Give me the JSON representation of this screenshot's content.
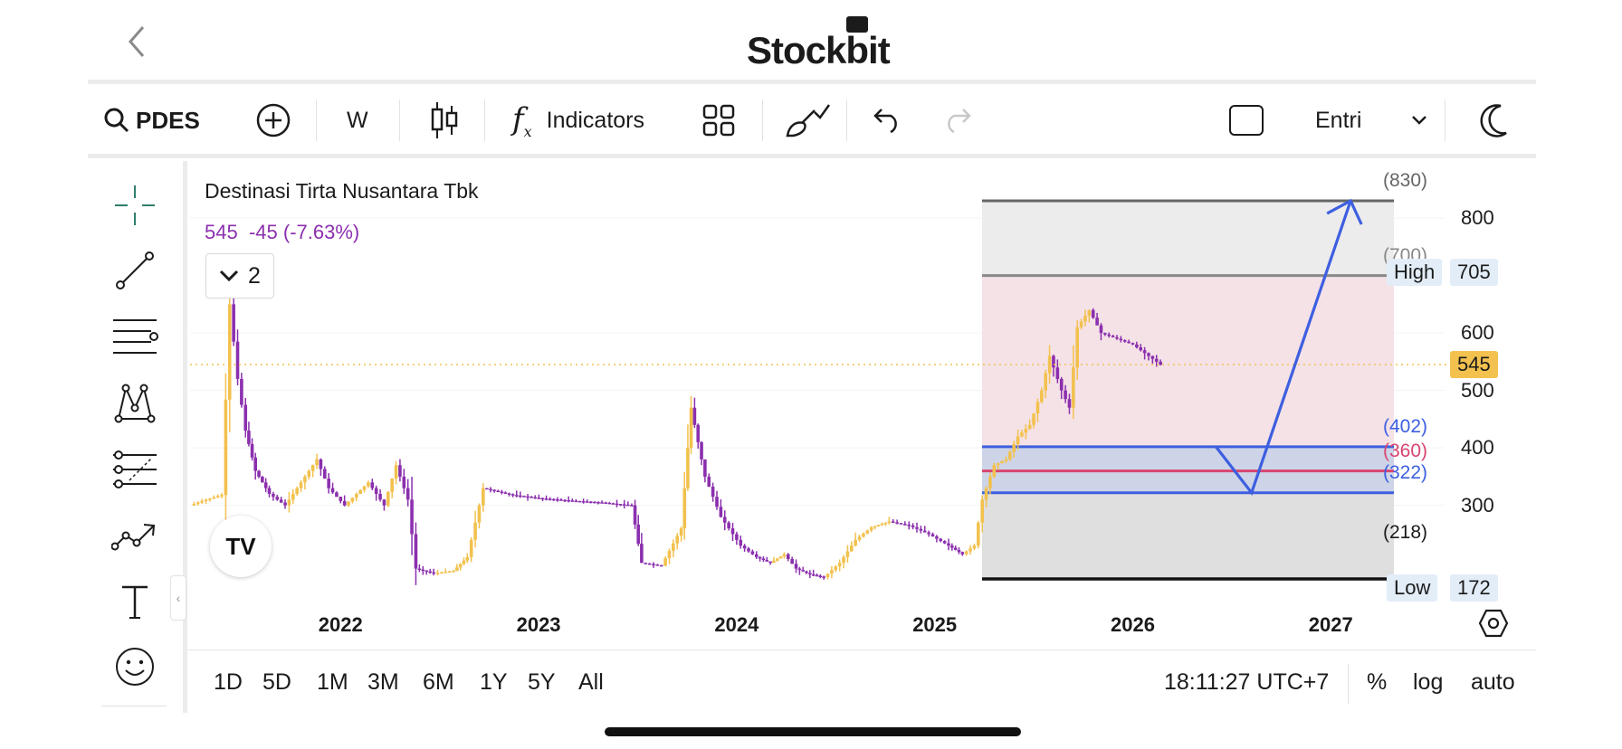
{
  "header": {
    "back_icon": "chevron-left-icon",
    "brand": "Stockbit"
  },
  "toolbar": {
    "symbol": "PDES",
    "interval": "W",
    "indicators_label": "Indicators",
    "order_label": "Entri"
  },
  "chart_header": {
    "name": "Destinasi Tirta Nusantara Tbk",
    "last_price": "545",
    "change": "-45 (-7.63%)",
    "collapsed_count": "2"
  },
  "bottom_bar": {
    "ranges": [
      "1D",
      "5D",
      "1M",
      "3M",
      "6M",
      "1Y",
      "5Y",
      "All"
    ],
    "clock": "18:11:27 UTC+7",
    "percent": "%",
    "log": "log",
    "auto": "auto"
  },
  "colors": {
    "bull": "#f2c14e",
    "bear": "#8b2fae",
    "blue_line": "#3d5fe0",
    "red_line": "#d8456f",
    "price_tag": "#f2c14e",
    "fib_pink": "#f3dde3",
    "fib_grey": "#e9e9e9"
  },
  "chart_data": {
    "type": "candlestick",
    "x_ticks": [
      "2022",
      "2023",
      "2024",
      "2025",
      "2026",
      "2027"
    ],
    "y_ticks": [
      300,
      400,
      500,
      600,
      800
    ],
    "y_range": [
      160,
      850
    ],
    "x_range": [
      2021.22,
      2027.55
    ],
    "current_price": 545,
    "high": {
      "label": "High",
      "value": 705
    },
    "low": {
      "label": "Low",
      "value": 172
    },
    "levels": [
      {
        "label": "(830)",
        "value": 830,
        "color": "#666666"
      },
      {
        "label": "(700)",
        "value": 700,
        "color": "#888888"
      },
      {
        "label": "(402)",
        "value": 402,
        "color": "#3d5fe0"
      },
      {
        "label": "(360)",
        "value": 360,
        "color": "#d8456f"
      },
      {
        "label": "(322)",
        "value": 322,
        "color": "#3d5fe0"
      },
      {
        "label": "(218)",
        "value": 218,
        "color": "#1b1b1b"
      }
    ],
    "projection_path": [
      [
        2026.4,
        402
      ],
      [
        2026.58,
        322
      ],
      [
        2027.08,
        830
      ]
    ],
    "series_close": [
      [
        2021.22,
        300
      ],
      [
        2021.3,
        310
      ],
      [
        2021.38,
        318
      ],
      [
        2021.42,
        650
      ],
      [
        2021.46,
        520
      ],
      [
        2021.5,
        430
      ],
      [
        2021.55,
        360
      ],
      [
        2021.62,
        320
      ],
      [
        2021.7,
        300
      ],
      [
        2021.78,
        340
      ],
      [
        2021.86,
        380
      ],
      [
        2021.92,
        330
      ],
      [
        2022.0,
        300
      ],
      [
        2022.06,
        320
      ],
      [
        2022.12,
        340
      ],
      [
        2022.2,
        300
      ],
      [
        2022.26,
        370
      ],
      [
        2022.32,
        310
      ],
      [
        2022.36,
        190
      ],
      [
        2022.45,
        182
      ],
      [
        2022.55,
        186
      ],
      [
        2022.62,
        210
      ],
      [
        2022.7,
        330
      ],
      [
        2022.85,
        318
      ],
      [
        2023.0,
        312
      ],
      [
        2023.15,
        308
      ],
      [
        2023.3,
        305
      ],
      [
        2023.45,
        300
      ],
      [
        2023.5,
        200
      ],
      [
        2023.6,
        195
      ],
      [
        2023.7,
        260
      ],
      [
        2023.75,
        470
      ],
      [
        2023.82,
        350
      ],
      [
        2023.9,
        280
      ],
      [
        2024.0,
        230
      ],
      [
        2024.08,
        210
      ],
      [
        2024.15,
        200
      ],
      [
        2024.22,
        215
      ],
      [
        2024.28,
        190
      ],
      [
        2024.35,
        180
      ],
      [
        2024.42,
        175
      ],
      [
        2024.5,
        200
      ],
      [
        2024.58,
        240
      ],
      [
        2024.66,
        262
      ],
      [
        2024.75,
        272
      ],
      [
        2024.85,
        265
      ],
      [
        2024.95,
        250
      ],
      [
        2025.05,
        230
      ],
      [
        2025.12,
        215
      ],
      [
        2025.18,
        230
      ],
      [
        2025.22,
        310
      ],
      [
        2025.28,
        370
      ],
      [
        2025.34,
        380
      ],
      [
        2025.4,
        420
      ],
      [
        2025.46,
        440
      ],
      [
        2025.52,
        500
      ],
      [
        2025.56,
        560
      ],
      [
        2025.62,
        500
      ],
      [
        2025.66,
        470
      ],
      [
        2025.7,
        610
      ],
      [
        2025.76,
        640
      ],
      [
        2025.82,
        600
      ],
      [
        2025.9,
        590
      ],
      [
        2025.98,
        580
      ],
      [
        2026.06,
        560
      ],
      [
        2026.12,
        545
      ]
    ]
  }
}
